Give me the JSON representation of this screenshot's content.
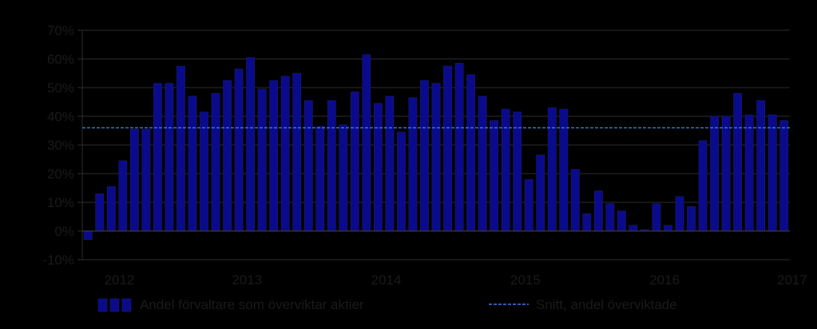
{
  "chart_data": {
    "type": "bar",
    "ylim": [
      -10,
      70
    ],
    "y_ticks": [
      -10,
      0,
      10,
      20,
      30,
      40,
      50,
      60,
      70
    ],
    "y_tick_labels": [
      "-10%",
      "0%",
      "10%",
      "20%",
      "30%",
      "40%",
      "50%",
      "60%",
      "70%"
    ],
    "x_tick_labels": [
      "2012",
      "2013",
      "2014",
      "2015",
      "2016",
      "2017"
    ],
    "x_tick_positions": [
      3,
      14,
      26,
      38,
      50,
      61
    ],
    "grid": true,
    "legend_placement": "bottom",
    "series": [
      {
        "name": "Andel förvaltare som överviktar aktier",
        "type": "bar",
        "color": "#0a0a8c",
        "values": [
          -3,
          13,
          15.5,
          24.5,
          35.5,
          35.5,
          51.5,
          51.5,
          57.5,
          47,
          41.5,
          48,
          52.5,
          56.5,
          60.5,
          49.5,
          52.5,
          54,
          55,
          45.5,
          36.5,
          45.5,
          37,
          48.5,
          61.5,
          44.5,
          47,
          34.5,
          46.5,
          52.5,
          51.5,
          57.5,
          58.5,
          54.5,
          47,
          38.5,
          42.5,
          41.5,
          18,
          26.5,
          43,
          42.5,
          21.5,
          6,
          14,
          9.5,
          7,
          2,
          0.5,
          9.5,
          2,
          12,
          8.5,
          31.5,
          40,
          40,
          48,
          40.5,
          45.5,
          40.5,
          38.5
        ]
      },
      {
        "name": "Snitt, andel överviktade",
        "type": "line",
        "style": "dashed",
        "color": "#3d7be8",
        "value": 36
      }
    ]
  }
}
